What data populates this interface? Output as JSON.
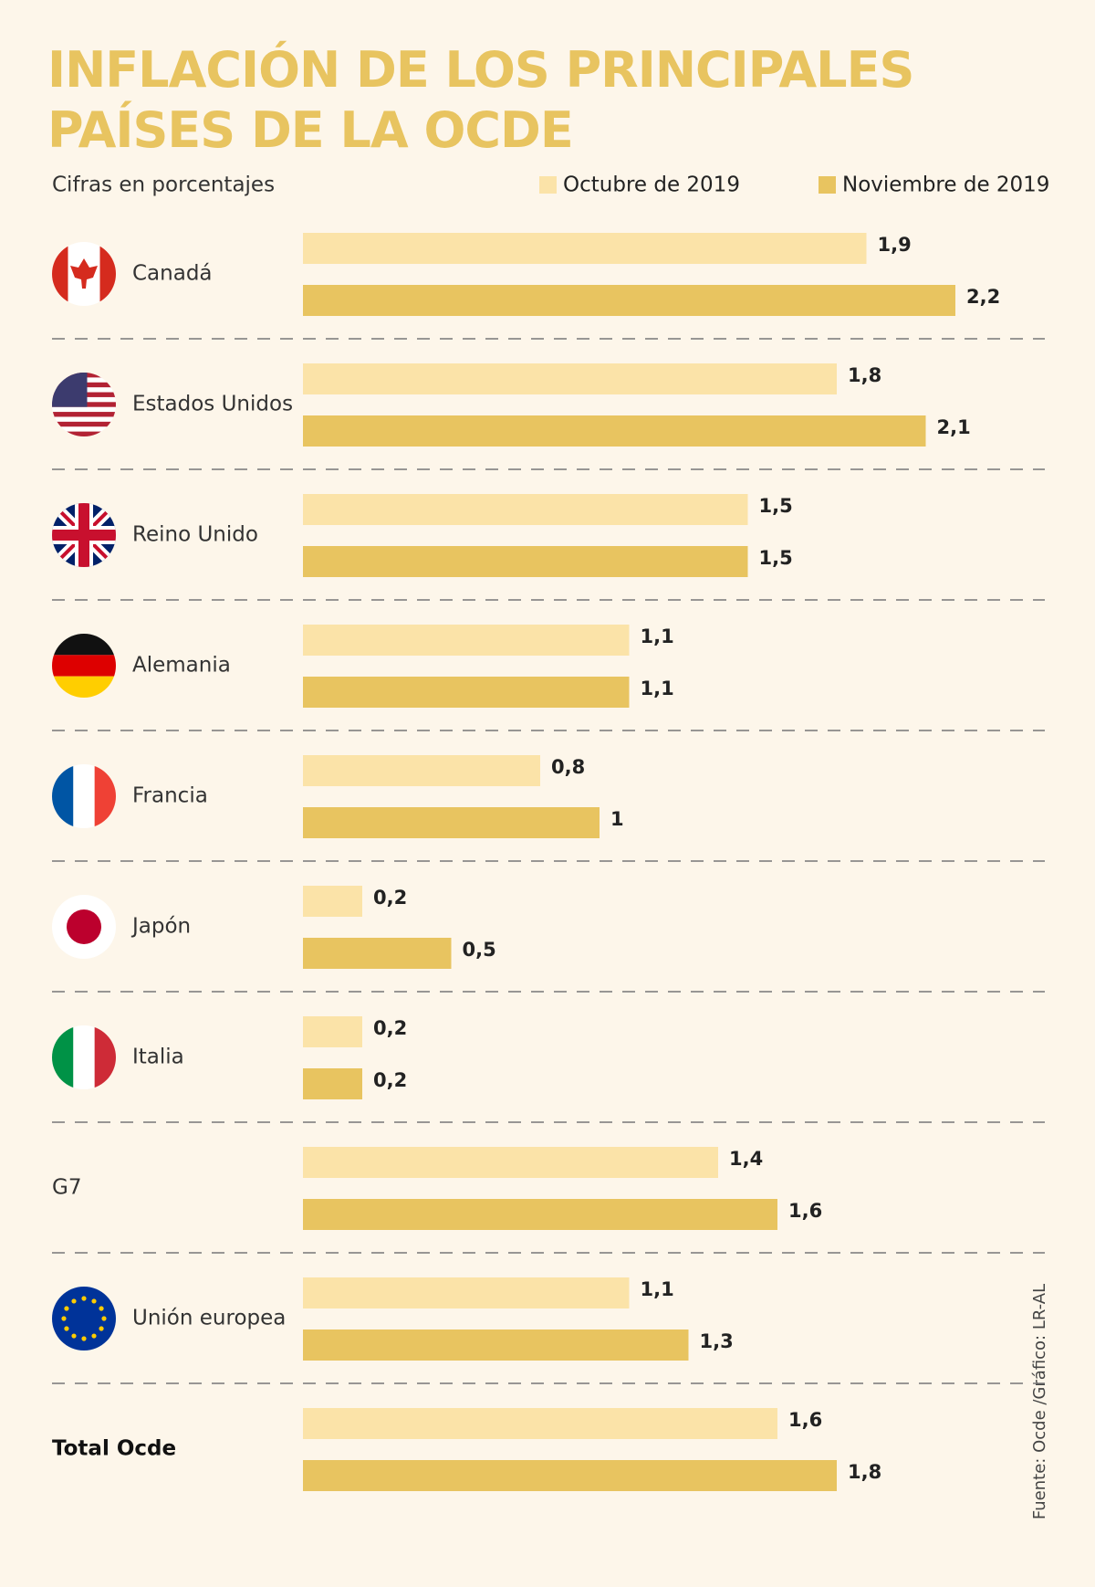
{
  "chart_data": {
    "type": "bar",
    "title": "INFLACIÓN DE LOS PRINCIPALES PAÍSES DE LA OCDE",
    "subtitle": "Cifras en porcentajes",
    "source": "Fuente: Ocde /Gráfico: LR-AL",
    "categories": [
      "Canadá",
      "Estados Unidos",
      "Reino Unido",
      "Alemania",
      "Francia",
      "Japón",
      "Italia",
      "G7",
      "Unión europea",
      "Total Ocde"
    ],
    "series": [
      {
        "name": "Octubre de 2019",
        "color": "#fbe3a8",
        "values": [
          1.9,
          1.8,
          1.5,
          1.1,
          0.8,
          0.2,
          0.2,
          1.4,
          1.1,
          1.6
        ],
        "value_labels": [
          "1,9",
          "1,8",
          "1,5",
          "1,1",
          "0,8",
          "0,2",
          "0,2",
          "1,4",
          "1,1",
          "1,6"
        ]
      },
      {
        "name": "Noviembre de 2019",
        "color": "#e8c460",
        "values": [
          2.2,
          2.1,
          1.5,
          1.1,
          1,
          0.5,
          0.2,
          1.6,
          1.3,
          1.8
        ],
        "value_labels": [
          "2,2",
          "2,1",
          "1,5",
          "1,1",
          "1",
          "0,5",
          "0,2",
          "1,6",
          "1,3",
          "1,8"
        ]
      }
    ]
  }
}
